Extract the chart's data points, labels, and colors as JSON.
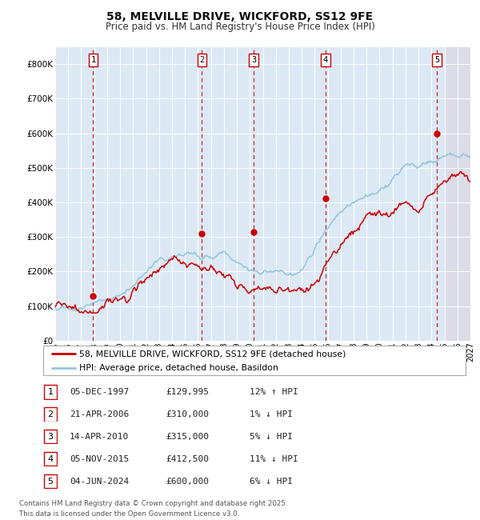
{
  "title": "58, MELVILLE DRIVE, WICKFORD, SS12 9FE",
  "subtitle": "Price paid vs. HM Land Registry's House Price Index (HPI)",
  "legend_line1": "58, MELVILLE DRIVE, WICKFORD, SS12 9FE (detached house)",
  "legend_line2": "HPI: Average price, detached house, Basildon",
  "footer_line1": "Contains HM Land Registry data © Crown copyright and database right 2025.",
  "footer_line2": "This data is licensed under the Open Government Licence v3.0.",
  "hpi_color": "#92C5DE",
  "price_color": "#CC0000",
  "background_chart": "#DCE9F5",
  "background_future": "#DCDCE8",
  "dashed_line_color": "#CC0000",
  "transactions": [
    {
      "num": 1,
      "date": "05-DEC-1997",
      "price_val": 129995,
      "price_str": "£129,995",
      "pct_str": "12% ↑ HPI",
      "year": 1997.92
    },
    {
      "num": 2,
      "date": "21-APR-2006",
      "price_val": 310000,
      "price_str": "£310,000",
      "pct_str": "1% ↓ HPI",
      "year": 2006.3
    },
    {
      "num": 3,
      "date": "14-APR-2010",
      "price_val": 315000,
      "price_str": "£315,000",
      "pct_str": "5% ↓ HPI",
      "year": 2010.29
    },
    {
      "num": 4,
      "date": "05-NOV-2015",
      "price_val": 412500,
      "price_str": "£412,500",
      "pct_str": "11% ↓ HPI",
      "year": 2015.84
    },
    {
      "num": 5,
      "date": "04-JUN-2024",
      "price_val": 600000,
      "price_str": "£600,000",
      "pct_str": "6% ↓ HPI",
      "year": 2024.42
    }
  ],
  "xmin": 1995,
  "xmax": 2027,
  "ymin": 0,
  "ymax": 850000,
  "ytick_vals": [
    0,
    100000,
    200000,
    300000,
    400000,
    500000,
    600000,
    700000,
    800000
  ],
  "ytick_labels": [
    "£0",
    "£100K",
    "£200K",
    "£300K",
    "£400K",
    "£500K",
    "£600K",
    "£700K",
    "£800K"
  ],
  "xticks": [
    1995,
    1996,
    1997,
    1998,
    1999,
    2000,
    2001,
    2002,
    2003,
    2004,
    2005,
    2006,
    2007,
    2008,
    2009,
    2010,
    2011,
    2012,
    2013,
    2014,
    2015,
    2016,
    2017,
    2018,
    2019,
    2020,
    2021,
    2022,
    2023,
    2024,
    2025,
    2026,
    2027
  ],
  "future_start": 2025.0
}
